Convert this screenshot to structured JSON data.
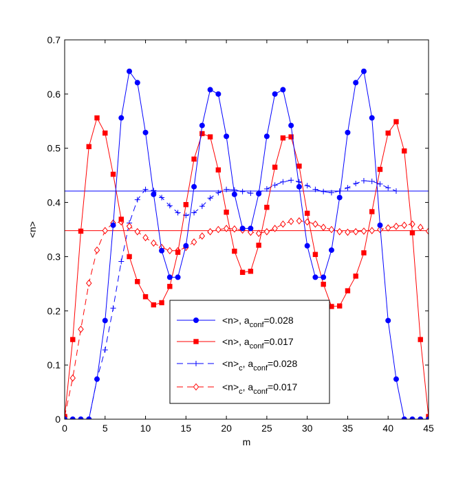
{
  "chart_data": {
    "type": "line",
    "xlabel": "m",
    "ylabel": "<n>",
    "xlim": [
      0,
      45
    ],
    "ylim": [
      0,
      0.7
    ],
    "xticks": [
      0,
      5,
      10,
      15,
      20,
      25,
      30,
      35,
      40,
      45
    ],
    "xtick_labels": [
      "0",
      "5",
      "10",
      "15",
      "20",
      "25",
      "30",
      "35",
      "40",
      "45"
    ],
    "yticks": [
      0,
      0.1,
      0.2,
      0.3,
      0.4,
      0.5,
      0.6,
      0.7
    ],
    "ytick_labels": [
      "0",
      "0.1",
      "0.2",
      "0.3",
      "0.4",
      "0.5",
      "0.6",
      "0.7"
    ],
    "grid": false,
    "legend_position": "bottom-center",
    "colors": {
      "blue": "#0000ff",
      "red": "#ff0000"
    },
    "series": [
      {
        "name": "<n>, a_conf=0.028",
        "legend_main": "<n>, a",
        "legend_sub": "conf",
        "legend_tail": "=0.028",
        "color": "#0000ff",
        "line_style": "solid",
        "marker": "circle",
        "x": [
          0,
          1,
          2,
          3,
          4,
          5,
          6,
          7,
          8,
          9,
          10,
          11,
          12,
          13,
          14,
          15,
          16,
          17,
          18,
          19,
          20,
          21,
          22,
          23,
          24,
          25,
          26,
          27,
          28,
          29,
          30,
          31,
          32,
          33,
          34,
          35,
          36,
          37,
          38,
          39,
          40,
          41,
          42,
          43,
          44,
          45
        ],
        "y": [
          0,
          0,
          0,
          0,
          0.074,
          0.182,
          0.358,
          0.556,
          0.642,
          0.621,
          0.529,
          0.415,
          0.311,
          0.262,
          0.262,
          0.32,
          0.429,
          0.542,
          0.608,
          0.6,
          0.522,
          0.415,
          0.352,
          0.352,
          0.416,
          0.522,
          0.6,
          0.608,
          0.542,
          0.429,
          0.32,
          0.262,
          0.262,
          0.312,
          0.409,
          0.529,
          0.621,
          0.642,
          0.556,
          0.358,
          0.182,
          0.074,
          0,
          0,
          0,
          0
        ]
      },
      {
        "name": "<n>, a_conf=0.017",
        "legend_main": "<n>, a",
        "legend_sub": "conf",
        "legend_tail": "=0.017",
        "color": "#ff0000",
        "line_style": "solid",
        "marker": "square",
        "x": [
          0,
          1,
          2,
          3,
          4,
          5,
          6,
          7,
          8,
          9,
          10,
          11,
          12,
          13,
          14,
          15,
          16,
          17,
          18,
          19,
          20,
          21,
          22,
          23,
          24,
          25,
          26,
          27,
          28,
          29,
          30,
          31,
          32,
          33,
          34,
          35,
          36,
          37,
          38,
          39,
          40,
          41,
          42,
          43,
          44,
          45
        ],
        "y": [
          0.005,
          0.147,
          0.347,
          0.503,
          0.556,
          0.528,
          0.452,
          0.369,
          0.3,
          0.254,
          0.226,
          0.211,
          0.215,
          0.245,
          0.308,
          0.396,
          0.48,
          0.527,
          0.521,
          0.46,
          0.382,
          0.31,
          0.271,
          0.273,
          0.321,
          0.391,
          0.465,
          0.519,
          0.521,
          0.467,
          0.38,
          0.304,
          0.249,
          0.208,
          0.209,
          0.237,
          0.264,
          0.307,
          0.383,
          0.461,
          0.528,
          0.549,
          0.495,
          0.344,
          0.147,
          0.005
        ]
      },
      {
        "name": "<n>_c, a_conf=0.028",
        "legend_main": "<n>",
        "legend_sub": "c",
        "legend_tail": ", a",
        "legend_sub2": "conf",
        "legend_tail2": "=0.028",
        "color": "#0000ff",
        "line_style": "dashed",
        "marker": "plus",
        "x": [
          0,
          1,
          2,
          3,
          4,
          5,
          6,
          7,
          8,
          9,
          10,
          11,
          12,
          13,
          14,
          15,
          16,
          17,
          18,
          19,
          20,
          21,
          22,
          23,
          24,
          25,
          26,
          27,
          28,
          29,
          30,
          31,
          32,
          33,
          34,
          35,
          36,
          37,
          38,
          39,
          40,
          41
        ],
        "y": [
          0,
          0,
          0,
          0,
          0.074,
          0.128,
          0.205,
          0.291,
          0.362,
          0.405,
          0.424,
          0.422,
          0.409,
          0.394,
          0.381,
          0.376,
          0.381,
          0.393,
          0.408,
          0.418,
          0.424,
          0.423,
          0.42,
          0.417,
          0.418,
          0.425,
          0.432,
          0.438,
          0.441,
          0.438,
          0.431,
          0.424,
          0.42,
          0.418,
          0.421,
          0.427,
          0.435,
          0.44,
          0.439,
          0.434,
          0.427,
          0.421
        ]
      },
      {
        "name": "<n>_c, a_conf=0.017",
        "legend_main": "<n>",
        "legend_sub": "c",
        "legend_tail": ", a",
        "legend_sub2": "conf",
        "legend_tail2": "=0.017",
        "color": "#ff0000",
        "line_style": "dashed",
        "marker": "diamond",
        "x": [
          0,
          1,
          2,
          3,
          4,
          5,
          6,
          7,
          8,
          9,
          10,
          11,
          12,
          13,
          14,
          15,
          16,
          17,
          18,
          19,
          20,
          21,
          22,
          23,
          24,
          25,
          26,
          27,
          28,
          29,
          30,
          31,
          32,
          33,
          34,
          35,
          36,
          37,
          38,
          39,
          40,
          41,
          42,
          43,
          44,
          45
        ],
        "y": [
          0.005,
          0.076,
          0.166,
          0.251,
          0.312,
          0.348,
          0.362,
          0.364,
          0.356,
          0.346,
          0.335,
          0.325,
          0.317,
          0.311,
          0.311,
          0.317,
          0.327,
          0.338,
          0.346,
          0.35,
          0.352,
          0.351,
          0.349,
          0.345,
          0.343,
          0.346,
          0.352,
          0.36,
          0.365,
          0.366,
          0.364,
          0.36,
          0.354,
          0.35,
          0.346,
          0.345,
          0.346,
          0.347,
          0.348,
          0.35,
          0.353,
          0.356,
          0.358,
          0.36,
          0.354,
          0.347
        ]
      }
    ],
    "reference_lines": [
      {
        "y": 0.421,
        "color": "#0000ff"
      },
      {
        "y": 0.348,
        "color": "#ff0000"
      }
    ]
  }
}
